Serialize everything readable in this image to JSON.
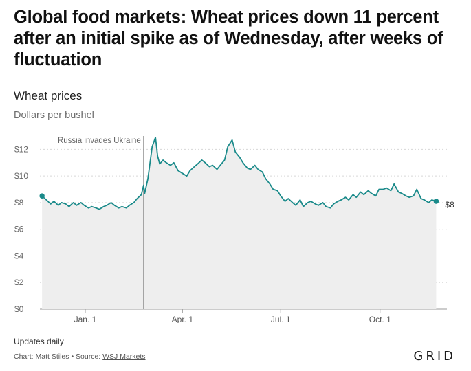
{
  "headline": "Global food markets: Wheat prices down 11 percent after an initial spike as of Wednesday, after weeks of fluctuation",
  "footer": {
    "note": "Updates daily",
    "credit_prefix": "Chart: Matt Stiles • Source: ",
    "source_link": "WSJ Markets",
    "brand": "GRID"
  },
  "chart_data": {
    "type": "area",
    "title": "Wheat prices",
    "subtitle": "Dollars per bushel",
    "xlabel": "",
    "ylabel": "",
    "ylim": [
      0,
      13
    ],
    "yticks": [
      0,
      2,
      4,
      6,
      8,
      10,
      12
    ],
    "ytick_labels": [
      "$0",
      "$2",
      "$4",
      "$6",
      "$8",
      "$10",
      "$12"
    ],
    "xlim": [
      "2021-11-20",
      "2022-11-23"
    ],
    "xticks": [
      "2022-01-01",
      "2022-04-01",
      "2022-07-01",
      "2022-10-01"
    ],
    "xtick_labels": [
      "Jan. 1",
      "Apr. 1",
      "Jul. 1",
      "Oct. 1"
    ],
    "grid": true,
    "colors": {
      "line": "#1a8a8a",
      "area": "#eeeeee",
      "annotation": "#888888"
    },
    "annotation": {
      "date": "2022-02-24",
      "label": "Russia invades Ukraine"
    },
    "end_label": "$8",
    "series": [
      {
        "values": [
          [
            "2021-11-22",
            8.5
          ],
          [
            "2021-11-26",
            8.2
          ],
          [
            "2021-11-30",
            7.9
          ],
          [
            "2021-12-03",
            8.1
          ],
          [
            "2021-12-07",
            7.8
          ],
          [
            "2021-12-10",
            8.0
          ],
          [
            "2021-12-14",
            7.9
          ],
          [
            "2021-12-17",
            7.7
          ],
          [
            "2021-12-21",
            8.0
          ],
          [
            "2021-12-24",
            7.8
          ],
          [
            "2021-12-28",
            8.0
          ],
          [
            "2021-12-31",
            7.8
          ],
          [
            "2022-01-04",
            7.6
          ],
          [
            "2022-01-07",
            7.7
          ],
          [
            "2022-01-11",
            7.6
          ],
          [
            "2022-01-14",
            7.5
          ],
          [
            "2022-01-18",
            7.7
          ],
          [
            "2022-01-21",
            7.8
          ],
          [
            "2022-01-25",
            8.0
          ],
          [
            "2022-01-28",
            7.8
          ],
          [
            "2022-02-01",
            7.6
          ],
          [
            "2022-02-04",
            7.7
          ],
          [
            "2022-02-08",
            7.6
          ],
          [
            "2022-02-11",
            7.8
          ],
          [
            "2022-02-15",
            8.0
          ],
          [
            "2022-02-18",
            8.3
          ],
          [
            "2022-02-22",
            8.6
          ],
          [
            "2022-02-24",
            9.3
          ],
          [
            "2022-02-25",
            8.7
          ],
          [
            "2022-02-28",
            9.8
          ],
          [
            "2022-03-02",
            11.0
          ],
          [
            "2022-03-04",
            12.2
          ],
          [
            "2022-03-07",
            12.9
          ],
          [
            "2022-03-09",
            11.5
          ],
          [
            "2022-03-11",
            10.9
          ],
          [
            "2022-03-14",
            11.2
          ],
          [
            "2022-03-17",
            11.0
          ],
          [
            "2022-03-21",
            10.8
          ],
          [
            "2022-03-24",
            11.0
          ],
          [
            "2022-03-28",
            10.4
          ],
          [
            "2022-04-01",
            10.2
          ],
          [
            "2022-04-05",
            10.0
          ],
          [
            "2022-04-08",
            10.4
          ],
          [
            "2022-04-12",
            10.7
          ],
          [
            "2022-04-15",
            10.9
          ],
          [
            "2022-04-19",
            11.2
          ],
          [
            "2022-04-22",
            11.0
          ],
          [
            "2022-04-26",
            10.7
          ],
          [
            "2022-04-29",
            10.8
          ],
          [
            "2022-05-03",
            10.5
          ],
          [
            "2022-05-06",
            10.8
          ],
          [
            "2022-05-10",
            11.2
          ],
          [
            "2022-05-13",
            12.2
          ],
          [
            "2022-05-17",
            12.7
          ],
          [
            "2022-05-20",
            11.8
          ],
          [
            "2022-05-24",
            11.4
          ],
          [
            "2022-05-27",
            11.0
          ],
          [
            "2022-05-31",
            10.6
          ],
          [
            "2022-06-03",
            10.5
          ],
          [
            "2022-06-07",
            10.8
          ],
          [
            "2022-06-10",
            10.5
          ],
          [
            "2022-06-14",
            10.3
          ],
          [
            "2022-06-17",
            9.8
          ],
          [
            "2022-06-21",
            9.4
          ],
          [
            "2022-06-24",
            9.0
          ],
          [
            "2022-06-28",
            8.9
          ],
          [
            "2022-07-01",
            8.5
          ],
          [
            "2022-07-05",
            8.1
          ],
          [
            "2022-07-08",
            8.3
          ],
          [
            "2022-07-12",
            8.0
          ],
          [
            "2022-07-15",
            7.8
          ],
          [
            "2022-07-19",
            8.2
          ],
          [
            "2022-07-22",
            7.7
          ],
          [
            "2022-07-26",
            8.0
          ],
          [
            "2022-07-29",
            8.1
          ],
          [
            "2022-08-02",
            7.9
          ],
          [
            "2022-08-05",
            7.8
          ],
          [
            "2022-08-09",
            8.0
          ],
          [
            "2022-08-12",
            7.7
          ],
          [
            "2022-08-16",
            7.6
          ],
          [
            "2022-08-19",
            7.9
          ],
          [
            "2022-08-23",
            8.1
          ],
          [
            "2022-08-26",
            8.2
          ],
          [
            "2022-08-30",
            8.4
          ],
          [
            "2022-09-02",
            8.2
          ],
          [
            "2022-09-06",
            8.6
          ],
          [
            "2022-09-09",
            8.4
          ],
          [
            "2022-09-13",
            8.8
          ],
          [
            "2022-09-16",
            8.6
          ],
          [
            "2022-09-20",
            8.9
          ],
          [
            "2022-09-23",
            8.7
          ],
          [
            "2022-09-27",
            8.5
          ],
          [
            "2022-09-30",
            9.0
          ],
          [
            "2022-10-04",
            9.0
          ],
          [
            "2022-10-07",
            9.1
          ],
          [
            "2022-10-11",
            8.9
          ],
          [
            "2022-10-14",
            9.4
          ],
          [
            "2022-10-18",
            8.8
          ],
          [
            "2022-10-21",
            8.7
          ],
          [
            "2022-10-25",
            8.5
          ],
          [
            "2022-10-28",
            8.4
          ],
          [
            "2022-11-01",
            8.5
          ],
          [
            "2022-11-04",
            9.0
          ],
          [
            "2022-11-08",
            8.3
          ],
          [
            "2022-11-11",
            8.2
          ],
          [
            "2022-11-15",
            8.0
          ],
          [
            "2022-11-18",
            8.2
          ],
          [
            "2022-11-22",
            8.1
          ]
        ]
      }
    ]
  }
}
